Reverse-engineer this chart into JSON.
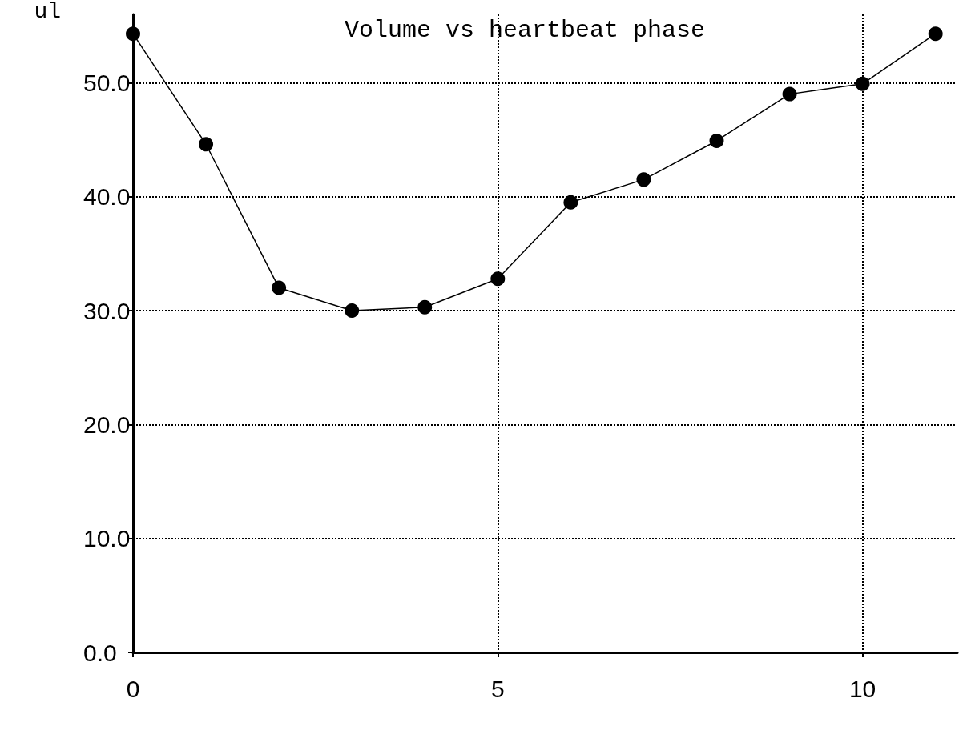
{
  "chart_data": {
    "type": "line",
    "title": "Volume vs heartbeat phase",
    "ylabel": "ul",
    "x": [
      0,
      1,
      2,
      3,
      4,
      5,
      6,
      7,
      8,
      9,
      10,
      11
    ],
    "series": [
      {
        "color": "#000000",
        "values": [
          54.3,
          44.6,
          32.0,
          30.0,
          30.3,
          32.8,
          39.5,
          41.5,
          44.9,
          49.0,
          49.9,
          54.3
        ]
      }
    ],
    "xlim": [
      0,
      11.3
    ],
    "xticks": [
      0,
      5,
      10
    ],
    "ylim": [
      0,
      56
    ],
    "yticks": [
      {
        "value": 0,
        "label": "0.0"
      },
      {
        "value": 10,
        "label": "10.0"
      },
      {
        "value": 20,
        "label": "20.0"
      },
      {
        "value": 30,
        "label": "30.0"
      },
      {
        "value": 40,
        "label": "40.0"
      },
      {
        "value": 50,
        "label": "50.0"
      }
    ],
    "grid": true,
    "line_style": "solid",
    "marker": "circle"
  }
}
